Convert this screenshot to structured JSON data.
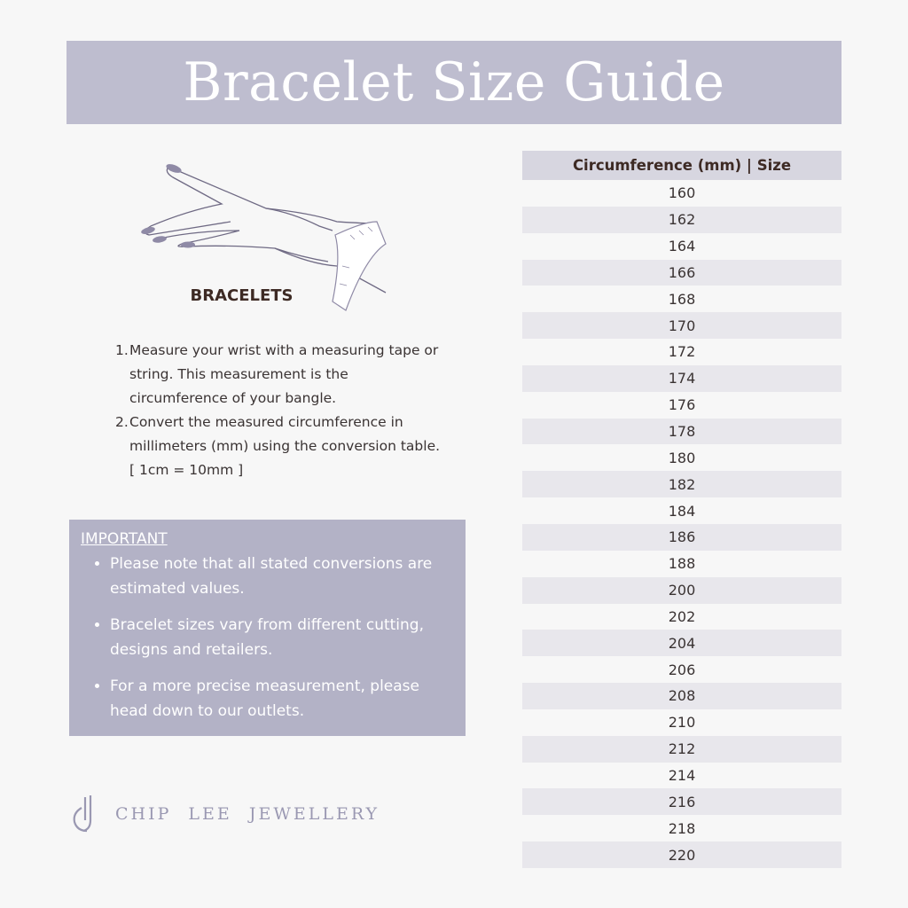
{
  "title": "Bracelet Size Guide",
  "illustration_label": "BRACELETS",
  "steps": [
    {
      "num": "1.",
      "text": "Measure your wrist with a measuring tape or string. This measurement is the circumference of your bangle."
    },
    {
      "num": "2.",
      "text": "Convert the measured circumference in millimeters (mm) using the conversion table. [ 1cm = 10mm ]"
    }
  ],
  "important": {
    "title": "IMPORTANT",
    "items": [
      "Please note that all stated conversions are estimated values.",
      "Bracelet sizes vary from different cutting, designs and retailers.",
      "For a more precise measurement, please head down to our outlets."
    ]
  },
  "logo": {
    "text": "CHIP LEE JEWELLERY"
  },
  "table": {
    "header": "Circumference (mm) | Size",
    "rows": [
      "160",
      "162",
      "164",
      "166",
      "168",
      "170",
      "172",
      "174",
      "176",
      "178",
      "180",
      "182",
      "184",
      "186",
      "188",
      "200",
      "202",
      "204",
      "206",
      "208",
      "210",
      "212",
      "214",
      "216",
      "218",
      "220"
    ]
  },
  "colors": {
    "banner": "#bebdcf",
    "important_box": "#b3b2c6",
    "table_header": "#d7d6e0",
    "table_stripe": "#e8e7ec",
    "logo": "#9a98b2"
  }
}
